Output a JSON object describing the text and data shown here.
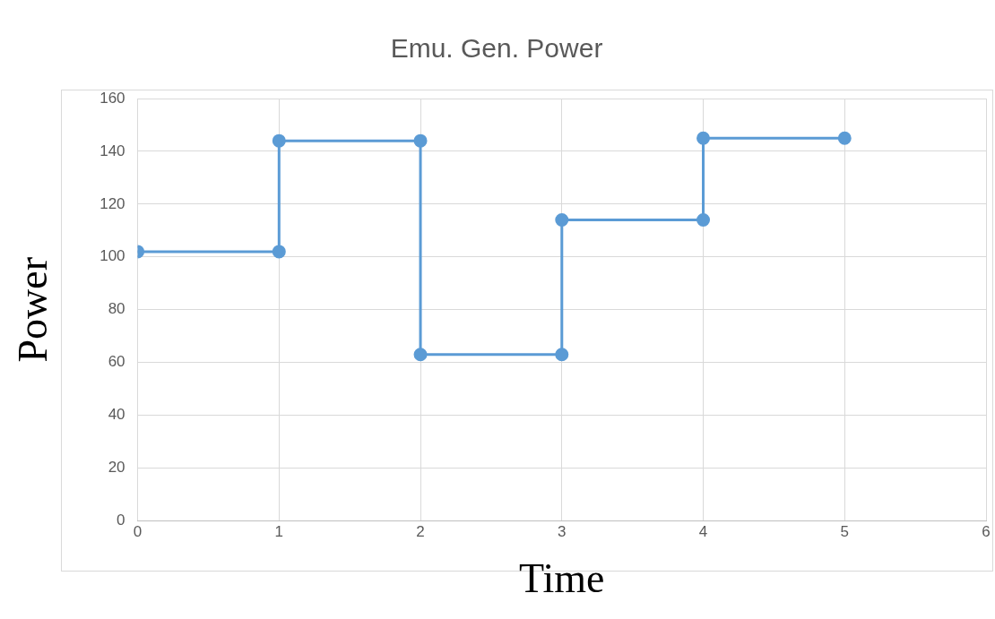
{
  "chart_data": {
    "type": "line",
    "title": "Emu. Gen. Power",
    "xlabel": "Time",
    "ylabel": "Power",
    "x": [
      0,
      1,
      1,
      2,
      2,
      3,
      3,
      4,
      4,
      5
    ],
    "series": [
      {
        "color": "#5b9bd5",
        "values": [
          102,
          102,
          144,
          144,
          63,
          63,
          114,
          114,
          145,
          145
        ]
      }
    ],
    "xlim": [
      0,
      6
    ],
    "xticks": [
      0,
      1,
      2,
      3,
      4,
      5,
      6
    ],
    "ylim": [
      0,
      160
    ],
    "yticks": [
      0,
      20,
      40,
      60,
      80,
      100,
      120,
      140,
      160
    ],
    "grid": true,
    "legend": false,
    "marker": "circle",
    "line_style": "solid"
  }
}
